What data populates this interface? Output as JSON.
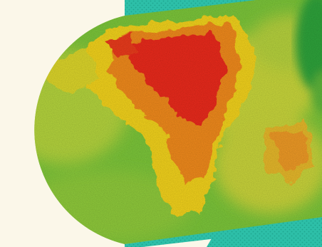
{
  "colors": {
    "page_background": "#fbf7e9",
    "banner_teal": "#2dbfa8",
    "banner_teal_dark": "#1fa590",
    "elevation_low": "#6cc23a",
    "elevation_mid_low": "#a8d23a",
    "elevation_mid": "#f2d21e",
    "elevation_mid_high": "#f08a1c",
    "elevation_high": "#ea2a1e",
    "forest_green": "#2ea33a"
  },
  "map": {
    "kind": "elevation-heatmap",
    "color_scale": [
      "low",
      "mid-low",
      "mid",
      "mid-high",
      "high"
    ]
  }
}
